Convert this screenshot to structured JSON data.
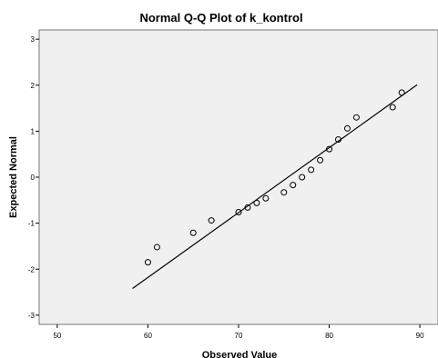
{
  "chart_data": {
    "type": "scatter",
    "title": "Normal Q-Q Plot of k_kontrol",
    "xlabel": "Observed Value",
    "ylabel": "Expected Normal",
    "xlim": [
      48,
      92
    ],
    "ylim": [
      -3.2,
      3.2
    ],
    "xticks": [
      50,
      60,
      70,
      80,
      90
    ],
    "yticks": [
      3,
      2,
      1,
      0,
      -1,
      -2,
      -3
    ],
    "grid": false,
    "plot_background": "#f0f0f0",
    "marker_color": "#000000",
    "line_color": "#000000",
    "series": [
      {
        "kind": "points",
        "x": [
          60,
          61,
          65,
          67,
          70,
          71,
          72,
          73,
          75,
          76,
          77,
          78,
          79,
          80,
          81,
          82,
          83,
          87,
          88
        ],
        "y": [
          -1.85,
          -1.52,
          -1.21,
          -0.94,
          -0.76,
          -0.66,
          -0.56,
          -0.46,
          -0.33,
          -0.17,
          0.0,
          0.16,
          0.37,
          0.61,
          0.82,
          1.06,
          1.3,
          1.52,
          1.84
        ]
      },
      {
        "kind": "reference-line",
        "x": [
          58.3,
          89.7
        ],
        "y": [
          -2.42,
          2.01
        ]
      }
    ]
  }
}
